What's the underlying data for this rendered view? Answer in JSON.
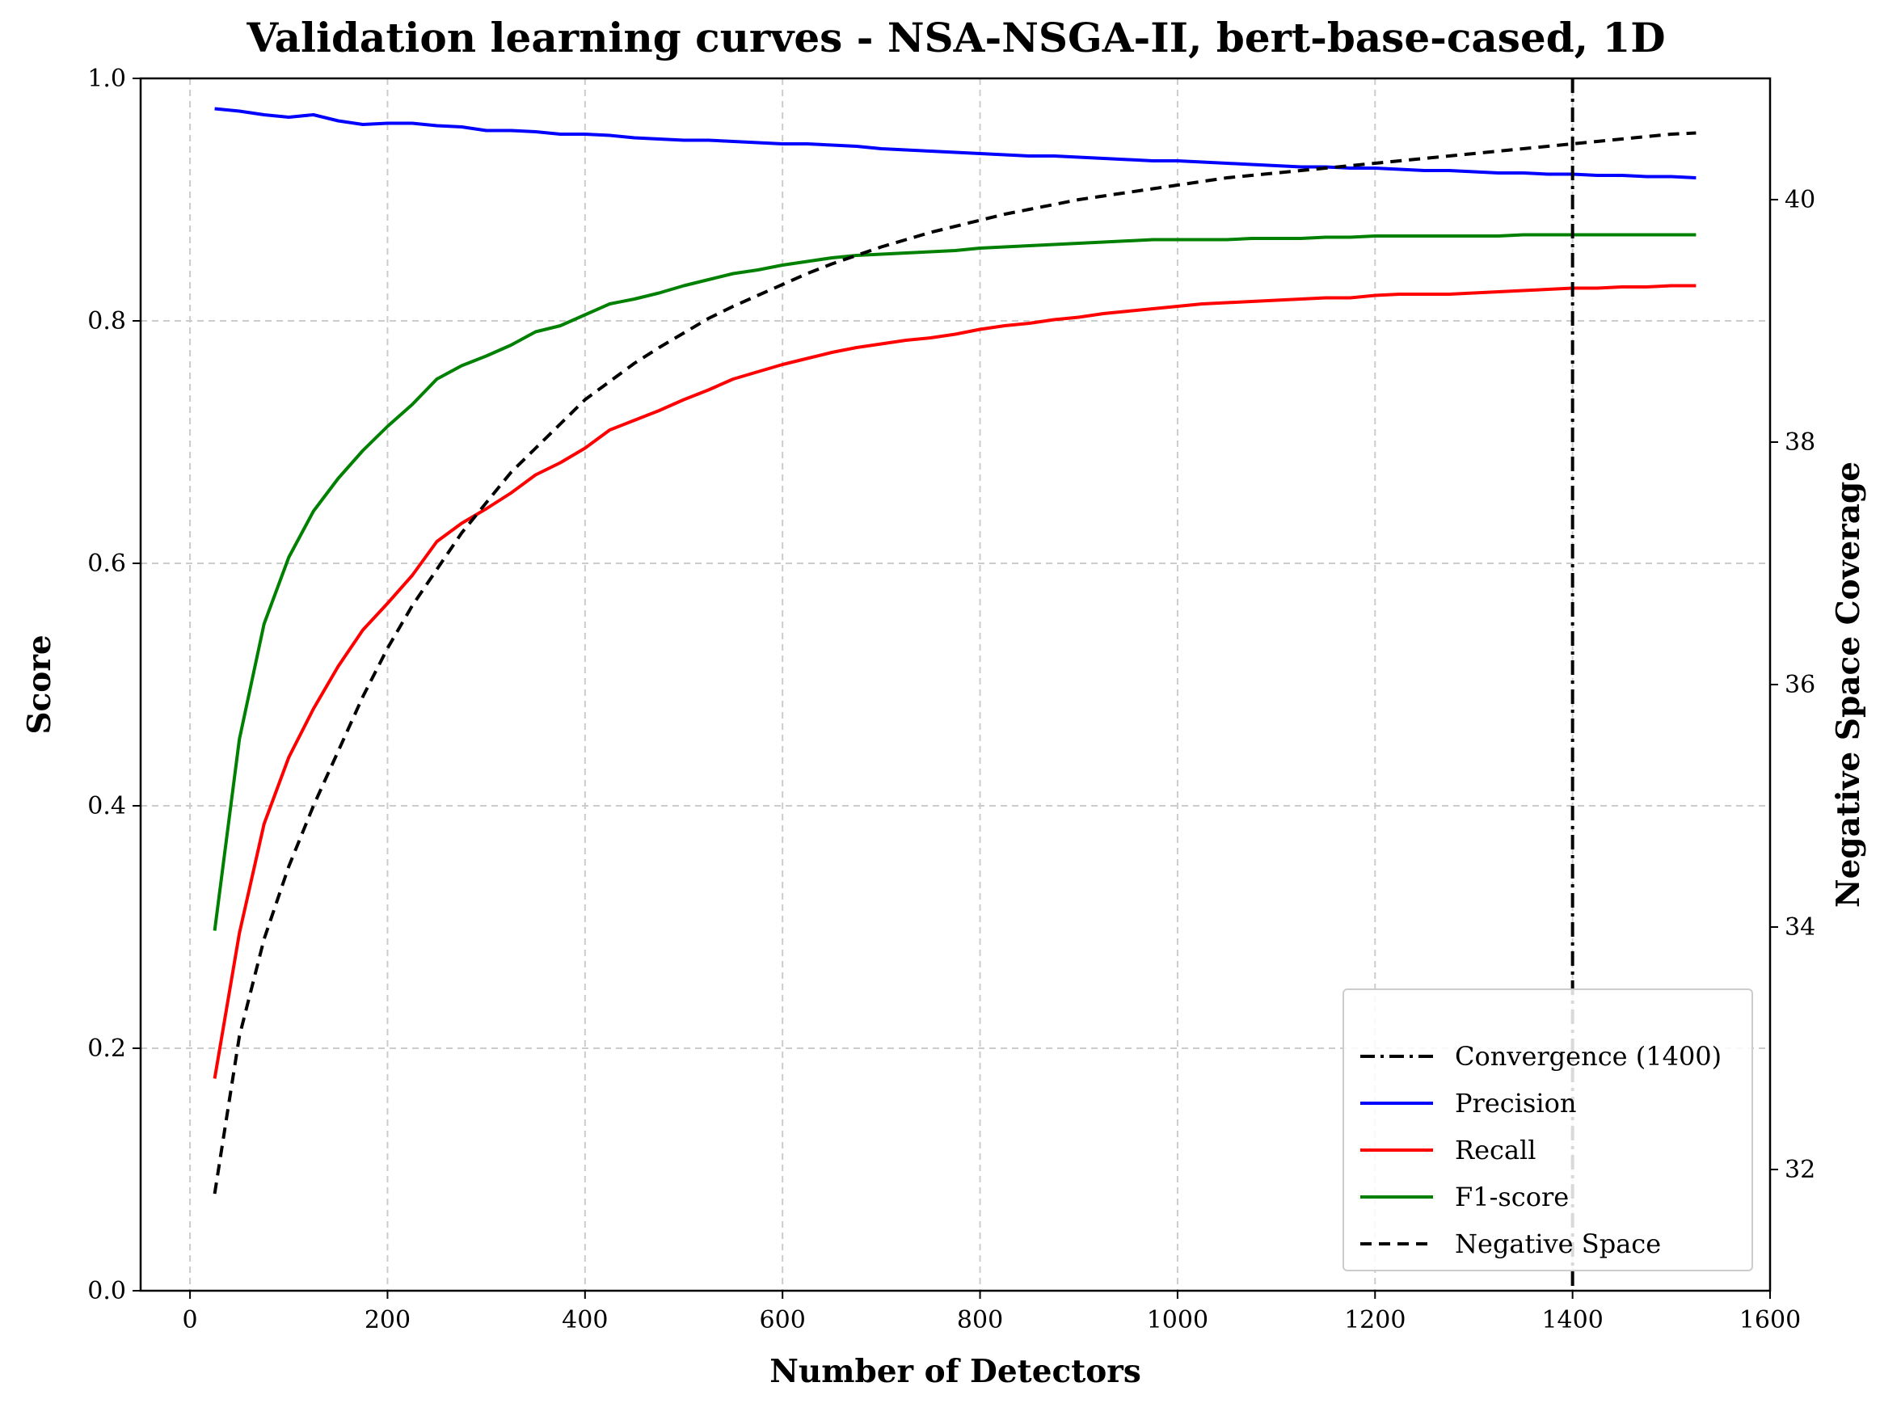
{
  "chart_data": {
    "type": "line",
    "title": "Validation learning curves - NSA-NSGA-II, bert-base-cased, 1D",
    "xlabel": "Number of Detectors",
    "ylabel": "Score",
    "y2label": "Negative Space Coverage",
    "xlim": [
      -50,
      1600
    ],
    "ylim": [
      0.0,
      1.0
    ],
    "y2lim": [
      31.0,
      41.0
    ],
    "xticks": [
      "0",
      "200",
      "400",
      "600",
      "800",
      "1000",
      "1200",
      "1400",
      "1600"
    ],
    "yticks": [
      "0.0",
      "0.2",
      "0.4",
      "0.6",
      "0.8",
      "1.0"
    ],
    "y2ticks": [
      "32",
      "34",
      "36",
      "38",
      "40"
    ],
    "grid": true,
    "legend_position": "lower-right",
    "convergence": {
      "name": "Convergence (1400)",
      "x": 1400,
      "color": "#000000",
      "style": "dashdot"
    },
    "x": [
      25,
      50,
      75,
      100,
      125,
      150,
      175,
      200,
      225,
      250,
      275,
      300,
      325,
      350,
      375,
      400,
      425,
      450,
      475,
      500,
      525,
      550,
      575,
      600,
      625,
      650,
      675,
      700,
      725,
      750,
      775,
      800,
      825,
      850,
      875,
      900,
      925,
      950,
      975,
      1000,
      1025,
      1050,
      1075,
      1100,
      1125,
      1150,
      1175,
      1200,
      1225,
      1250,
      1275,
      1300,
      1325,
      1350,
      1375,
      1400,
      1425,
      1450,
      1475,
      1500,
      1525
    ],
    "series": [
      {
        "name": "Precision",
        "axis": "left",
        "color": "#0000ff",
        "style": "solid",
        "values": [
          0.975,
          0.973,
          0.97,
          0.968,
          0.97,
          0.965,
          0.962,
          0.963,
          0.963,
          0.961,
          0.96,
          0.957,
          0.957,
          0.956,
          0.954,
          0.954,
          0.953,
          0.951,
          0.95,
          0.949,
          0.949,
          0.948,
          0.947,
          0.946,
          0.946,
          0.945,
          0.944,
          0.942,
          0.941,
          0.94,
          0.939,
          0.938,
          0.937,
          0.936,
          0.936,
          0.935,
          0.934,
          0.933,
          0.932,
          0.932,
          0.931,
          0.93,
          0.929,
          0.928,
          0.927,
          0.927,
          0.926,
          0.926,
          0.925,
          0.924,
          0.924,
          0.923,
          0.922,
          0.922,
          0.921,
          0.921,
          0.92,
          0.92,
          0.919,
          0.919,
          0.918
        ]
      },
      {
        "name": "Recall",
        "axis": "left",
        "color": "#ff0000",
        "style": "solid",
        "values": [
          0.175,
          0.295,
          0.385,
          0.44,
          0.48,
          0.515,
          0.545,
          0.567,
          0.59,
          0.618,
          0.633,
          0.645,
          0.658,
          0.673,
          0.683,
          0.695,
          0.71,
          0.718,
          0.726,
          0.735,
          0.743,
          0.752,
          0.758,
          0.764,
          0.769,
          0.774,
          0.778,
          0.781,
          0.784,
          0.786,
          0.789,
          0.793,
          0.796,
          0.798,
          0.801,
          0.803,
          0.806,
          0.808,
          0.81,
          0.812,
          0.814,
          0.815,
          0.816,
          0.817,
          0.818,
          0.819,
          0.819,
          0.821,
          0.822,
          0.822,
          0.822,
          0.823,
          0.824,
          0.825,
          0.826,
          0.827,
          0.827,
          0.828,
          0.828,
          0.829,
          0.829
        ]
      },
      {
        "name": "F1-score",
        "axis": "left",
        "color": "#008000",
        "style": "solid",
        "values": [
          0.297,
          0.455,
          0.55,
          0.605,
          0.643,
          0.67,
          0.693,
          0.713,
          0.731,
          0.752,
          0.763,
          0.771,
          0.78,
          0.791,
          0.796,
          0.805,
          0.814,
          0.818,
          0.823,
          0.829,
          0.834,
          0.839,
          0.842,
          0.846,
          0.849,
          0.852,
          0.854,
          0.855,
          0.856,
          0.857,
          0.858,
          0.86,
          0.861,
          0.862,
          0.863,
          0.864,
          0.865,
          0.866,
          0.867,
          0.867,
          0.867,
          0.867,
          0.868,
          0.868,
          0.868,
          0.869,
          0.869,
          0.87,
          0.87,
          0.87,
          0.87,
          0.87,
          0.87,
          0.871,
          0.871,
          0.871,
          0.871,
          0.871,
          0.871,
          0.871,
          0.871
        ]
      },
      {
        "name": "Negative Space",
        "axis": "right",
        "color": "#000000",
        "style": "dashed",
        "values": [
          31.8,
          33.1,
          33.9,
          34.5,
          35.0,
          35.45,
          35.9,
          36.3,
          36.65,
          36.95,
          37.25,
          37.5,
          37.75,
          37.95,
          38.15,
          38.35,
          38.5,
          38.65,
          38.78,
          38.9,
          39.02,
          39.12,
          39.21,
          39.3,
          39.39,
          39.47,
          39.54,
          39.61,
          39.67,
          39.73,
          39.78,
          39.83,
          39.88,
          39.92,
          39.96,
          40.0,
          40.03,
          40.06,
          40.09,
          40.12,
          40.15,
          40.18,
          40.2,
          40.22,
          40.24,
          40.26,
          40.28,
          40.3,
          40.32,
          40.34,
          40.36,
          40.38,
          40.4,
          40.42,
          40.44,
          40.46,
          40.48,
          40.5,
          40.52,
          40.54,
          40.55
        ]
      }
    ]
  }
}
